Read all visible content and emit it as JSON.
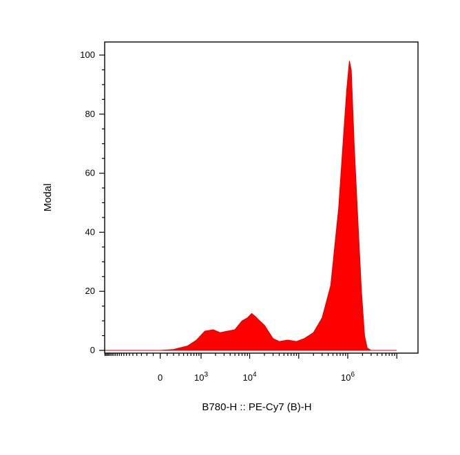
{
  "chart_data": {
    "type": "area",
    "title": "",
    "xlabel": "B780-H :: PE-Cy7 (B)-H",
    "ylabel": "Modal",
    "x_scale": "biexponential",
    "ylim": [
      0,
      100
    ],
    "y_ticks": [
      {
        "value": 0,
        "label": "0"
      },
      {
        "value": 20,
        "label": "20"
      },
      {
        "value": 40,
        "label": "40"
      },
      {
        "value": 60,
        "label": "60"
      },
      {
        "value": 80,
        "label": "80"
      },
      {
        "value": 100,
        "label": "100"
      }
    ],
    "x_ticks": [
      {
        "value": 0,
        "base": "0",
        "exp": ""
      },
      {
        "value": 1000,
        "base": "10",
        "exp": "3"
      },
      {
        "value": 10000,
        "base": "10",
        "exp": "4"
      },
      {
        "value": 1000000,
        "base": "10",
        "exp": "6"
      }
    ],
    "fill_color": "#ff0000",
    "grid": false,
    "series": [
      {
        "values": [
          [
            -3000,
            2
          ],
          [
            -2500,
            0.5
          ],
          [
            -2000,
            0
          ],
          [
            -1000,
            0
          ],
          [
            0,
            0
          ],
          [
            200,
            0.3
          ],
          [
            500,
            1.5
          ],
          [
            800,
            3.5
          ],
          [
            1200,
            6.5
          ],
          [
            1800,
            7
          ],
          [
            2500,
            6
          ],
          [
            3500,
            6.5
          ],
          [
            5000,
            7
          ],
          [
            7000,
            10
          ],
          [
            9000,
            11
          ],
          [
            11000,
            12.5
          ],
          [
            13000,
            11.5
          ],
          [
            16000,
            10
          ],
          [
            20000,
            8.5
          ],
          [
            25000,
            6
          ],
          [
            30000,
            4
          ],
          [
            40000,
            3
          ],
          [
            60000,
            3.5
          ],
          [
            90000,
            3
          ],
          [
            130000,
            4
          ],
          [
            200000,
            6
          ],
          [
            300000,
            11
          ],
          [
            450000,
            22
          ],
          [
            650000,
            48
          ],
          [
            800000,
            70
          ],
          [
            950000,
            88
          ],
          [
            1080000,
            98
          ],
          [
            1180000,
            95
          ],
          [
            1350000,
            70
          ],
          [
            1600000,
            45
          ],
          [
            1900000,
            20
          ],
          [
            2200000,
            5
          ],
          [
            2500000,
            0.8
          ],
          [
            3000000,
            0
          ],
          [
            10000000,
            0
          ]
        ]
      }
    ]
  }
}
